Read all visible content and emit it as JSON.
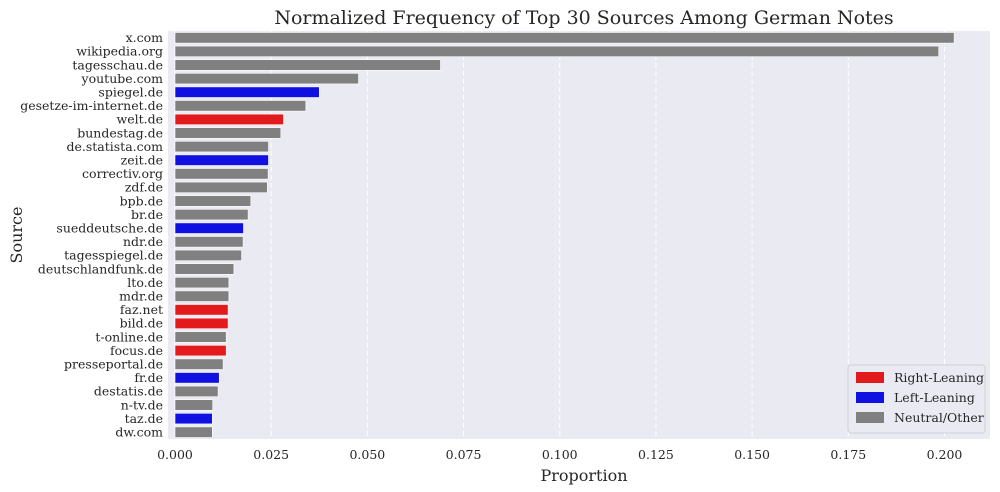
{
  "chart_data": {
    "type": "bar",
    "orientation": "horizontal",
    "title": "Normalized Frequency of Top 30 Sources Among German Notes",
    "xlabel": "Proportion",
    "ylabel": "Source",
    "xlim": [
      0,
      0.21
    ],
    "xticks": [
      "0.000",
      "0.025",
      "0.050",
      "0.075",
      "0.100",
      "0.125",
      "0.150",
      "0.175",
      "0.200"
    ],
    "grid": true,
    "legend_position": "lower-right",
    "colors": {
      "Right-Leaning": "#e31a1c",
      "Left-Leaning": "#1010e0",
      "Neutral/Other": "#808080"
    },
    "legend": [
      "Right-Leaning",
      "Left-Leaning",
      "Neutral/Other"
    ],
    "categories": [
      "x.com",
      "wikipedia.org",
      "tagesschau.de",
      "youtube.com",
      "spiegel.de",
      "gesetze-im-internet.de",
      "welt.de",
      "bundestag.de",
      "de.statista.com",
      "zeit.de",
      "correctiv.org",
      "zdf.de",
      "bpb.de",
      "br.de",
      "sueddeutsche.de",
      "ndr.de",
      "tagesspiegel.de",
      "deutschlandfunk.de",
      "lto.de",
      "mdr.de",
      "faz.net",
      "bild.de",
      "t-online.de",
      "focus.de",
      "presseportal.de",
      "fr.de",
      "destatis.de",
      "n-tv.de",
      "taz.de",
      "dw.com"
    ],
    "values": [
      0.2025,
      0.1985,
      0.069,
      0.0477,
      0.0375,
      0.034,
      0.0282,
      0.0275,
      0.0243,
      0.0243,
      0.0242,
      0.024,
      0.0197,
      0.019,
      0.0178,
      0.0177,
      0.0173,
      0.0153,
      0.014,
      0.014,
      0.0138,
      0.0138,
      0.0133,
      0.0133,
      0.0125,
      0.0115,
      0.0112,
      0.0098,
      0.0097,
      0.0097
    ],
    "leaning": [
      "Neutral/Other",
      "Neutral/Other",
      "Neutral/Other",
      "Neutral/Other",
      "Left-Leaning",
      "Neutral/Other",
      "Right-Leaning",
      "Neutral/Other",
      "Neutral/Other",
      "Left-Leaning",
      "Neutral/Other",
      "Neutral/Other",
      "Neutral/Other",
      "Neutral/Other",
      "Left-Leaning",
      "Neutral/Other",
      "Neutral/Other",
      "Neutral/Other",
      "Neutral/Other",
      "Neutral/Other",
      "Right-Leaning",
      "Right-Leaning",
      "Neutral/Other",
      "Right-Leaning",
      "Neutral/Other",
      "Left-Leaning",
      "Neutral/Other",
      "Neutral/Other",
      "Left-Leaning",
      "Neutral/Other"
    ]
  }
}
